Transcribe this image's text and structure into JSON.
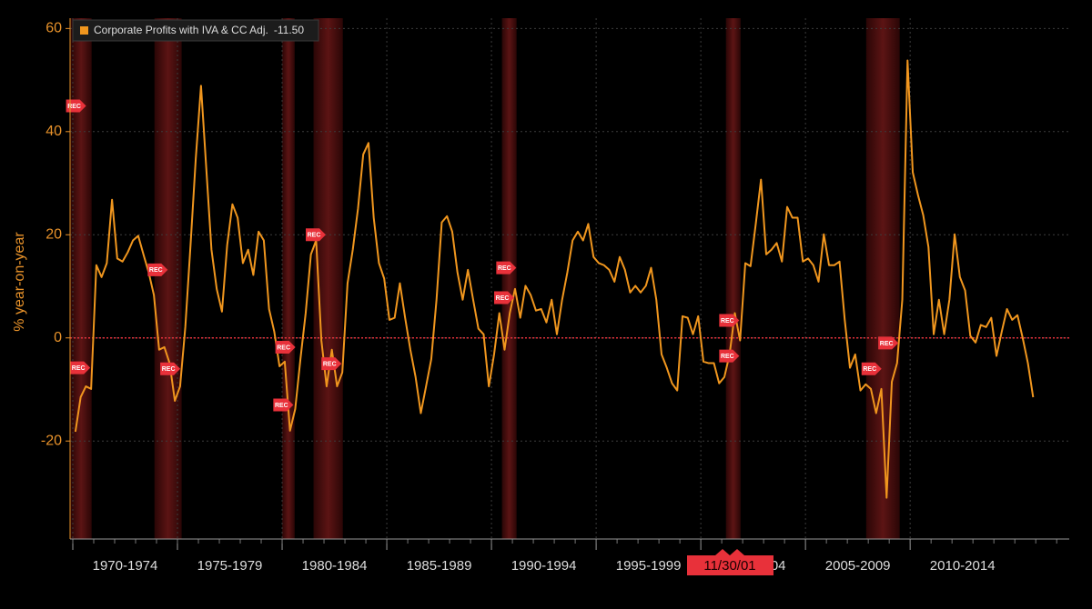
{
  "chart_data": {
    "type": "line",
    "y_label": "% year-on-year",
    "xlim": [
      1969.87,
      2017.6
    ],
    "ylim": [
      -39,
      62
    ],
    "xticks": [
      {
        "value": 1970,
        "label": "1970-1974"
      },
      {
        "value": 1975,
        "label": "1975-1979"
      },
      {
        "value": 1980,
        "label": "1980-1984"
      },
      {
        "value": 1985,
        "label": "1985-1989"
      },
      {
        "value": 1990,
        "label": "1990-1994"
      },
      {
        "value": 1995,
        "label": "1995-1999"
      },
      {
        "value": 2000,
        "label": "2000-2004"
      },
      {
        "value": 2005,
        "label": "2005-2009"
      },
      {
        "value": 2010,
        "label": "2010-2014"
      }
    ],
    "yticks": [
      -20,
      0,
      20,
      40,
      60
    ],
    "grid": true,
    "zero_line_color": "#e0303a",
    "x": [
      1970.125,
      1970.375,
      1970.625,
      1970.875,
      1971.125,
      1971.375,
      1971.625,
      1971.875,
      1972.125,
      1972.375,
      1972.625,
      1972.875,
      1973.125,
      1973.375,
      1973.625,
      1973.875,
      1974.125,
      1974.375,
      1974.625,
      1974.875,
      1975.125,
      1975.375,
      1975.625,
      1975.875,
      1976.125,
      1976.375,
      1976.625,
      1976.875,
      1977.125,
      1977.375,
      1977.625,
      1977.875,
      1978.125,
      1978.375,
      1978.625,
      1978.875,
      1979.125,
      1979.375,
      1979.625,
      1979.875,
      1980.125,
      1980.375,
      1980.625,
      1980.875,
      1981.125,
      1981.375,
      1981.625,
      1981.875,
      1982.125,
      1982.375,
      1982.625,
      1982.875,
      1983.125,
      1983.375,
      1983.625,
      1983.875,
      1984.125,
      1984.375,
      1984.625,
      1984.875,
      1985.125,
      1985.375,
      1985.625,
      1985.875,
      1986.125,
      1986.375,
      1986.625,
      1986.875,
      1987.125,
      1987.375,
      1987.625,
      1987.875,
      1988.125,
      1988.375,
      1988.625,
      1988.875,
      1989.125,
      1989.375,
      1989.625,
      1989.875,
      1990.125,
      1990.375,
      1990.625,
      1990.875,
      1991.125,
      1991.375,
      1991.625,
      1991.875,
      1992.125,
      1992.375,
      1992.625,
      1992.875,
      1993.125,
      1993.375,
      1993.625,
      1993.875,
      1994.125,
      1994.375,
      1994.625,
      1994.875,
      1995.125,
      1995.375,
      1995.625,
      1995.875,
      1996.125,
      1996.375,
      1996.625,
      1996.875,
      1997.125,
      1997.375,
      1997.625,
      1997.875,
      1998.125,
      1998.375,
      1998.625,
      1998.875,
      1999.125,
      1999.375,
      1999.625,
      1999.875,
      2000.125,
      2000.375,
      2000.625,
      2000.875,
      2001.125,
      2001.375,
      2001.625,
      2001.875,
      2002.125,
      2002.375,
      2002.625,
      2002.875,
      2003.125,
      2003.375,
      2003.625,
      2003.875,
      2004.125,
      2004.375,
      2004.625,
      2004.875,
      2005.125,
      2005.375,
      2005.625,
      2005.875,
      2006.125,
      2006.375,
      2006.625,
      2006.875,
      2007.125,
      2007.375,
      2007.625,
      2007.875,
      2008.125,
      2008.375,
      2008.625,
      2008.875,
      2009.125,
      2009.375,
      2009.625,
      2009.875,
      2010.125,
      2010.375,
      2010.625,
      2010.875,
      2011.125,
      2011.375,
      2011.625,
      2011.875,
      2012.125,
      2012.375,
      2012.625,
      2012.875,
      2013.125,
      2013.375,
      2013.625,
      2013.875,
      2014.125,
      2014.375,
      2014.625,
      2014.875,
      2015.125,
      2015.375,
      2015.625,
      2015.875
    ],
    "series": [
      {
        "name": "Corporate Profits with IVA & CC Adj.",
        "color": "#f0961e",
        "values": [
          -18.2,
          -11.5,
          -9.4,
          -9.9,
          14.1,
          11.8,
          14.5,
          26.8,
          15.4,
          14.8,
          16.6,
          18.9,
          19.8,
          16.2,
          12.7,
          8.3,
          -2.3,
          -1.8,
          -4.9,
          -12.2,
          -9.4,
          2.1,
          18,
          34.8,
          48.9,
          33,
          17.1,
          9.5,
          5.1,
          18,
          25.9,
          23.3,
          14.5,
          17.1,
          12.2,
          20.6,
          18.9,
          5.6,
          1.2,
          -5.5,
          -4.6,
          -18,
          -13.8,
          -4.1,
          4.8,
          16.2,
          18.9,
          -0.5,
          -9.4,
          -2.3,
          -9.4,
          -6.7,
          10.6,
          17.1,
          25.1,
          35.6,
          37.8,
          23.3,
          14.5,
          11.5,
          3.5,
          3.9,
          10.6,
          3.9,
          -2.3,
          -7.6,
          -14.6,
          -9.4,
          -4.1,
          7.4,
          22.4,
          23.6,
          20.6,
          12.7,
          7.4,
          13.2,
          7.4,
          1.8,
          0.7,
          -9.4,
          -3.2,
          4.8,
          -2.3,
          4.8,
          9.5,
          3.9,
          10.1,
          8.3,
          5.3,
          5.6,
          3,
          7.4,
          0.7,
          7.4,
          12.7,
          18.9,
          20.6,
          18.9,
          22.1,
          15.7,
          14.5,
          14.1,
          13.2,
          10.9,
          15.7,
          13.2,
          8.8,
          10.1,
          8.8,
          10.1,
          13.6,
          7.4,
          -3.2,
          -5.8,
          -8.8,
          -10.2,
          4.2,
          3.9,
          0.7,
          4.2,
          -4.6,
          -4.9,
          -4.9,
          -8.8,
          -7.6,
          -3.2,
          4.8,
          -0.5,
          14.5,
          13.9,
          22.1,
          30.7,
          16.2,
          17.1,
          18.4,
          14.8,
          25.4,
          23.3,
          23.3,
          14.8,
          15.4,
          14.1,
          10.9,
          20.1,
          14.1,
          14.1,
          14.8,
          3.5,
          -5.8,
          -3.2,
          -10.2,
          -9,
          -9.9,
          -14.6,
          -9.9,
          -31,
          -8.5,
          -4.9,
          7.4,
          53.8,
          32.1,
          27.7,
          23.8,
          17.6,
          0.7,
          7.4,
          0.7,
          7.4,
          20.1,
          11.8,
          9.2,
          0.4,
          -0.9,
          2.5,
          2.1,
          3.9,
          -3.5,
          1.2,
          5.6,
          3.5,
          4.4,
          0,
          -4.9,
          -11.5
        ]
      }
    ],
    "legend_value": {
      "value": -11.5,
      "label": "-11.50"
    },
    "recessions": [
      {
        "start": 1969.9,
        "end": 1970.9
      },
      {
        "start": 1973.9,
        "end": 1975.2
      },
      {
        "start": 1980.0,
        "end": 1980.6
      },
      {
        "start": 1981.5,
        "end": 1982.9
      },
      {
        "start": 1990.5,
        "end": 1991.2
      },
      {
        "start": 2001.2,
        "end": 2001.9
      },
      {
        "start": 2007.9,
        "end": 2009.5
      }
    ],
    "rec_markers": [
      {
        "x": 1970.2,
        "y": 45,
        "label": "REC"
      },
      {
        "x": 1970.4,
        "y": -5.8,
        "label": "REC"
      },
      {
        "x": 1974.1,
        "y": 13.2,
        "label": "REC"
      },
      {
        "x": 1974.7,
        "y": -6,
        "label": "REC"
      },
      {
        "x": 1980.2,
        "y": -1.8,
        "label": "REC"
      },
      {
        "x": 1980.1,
        "y": -13,
        "label": "REC"
      },
      {
        "x": 1981.65,
        "y": 20,
        "label": "REC"
      },
      {
        "x": 1982.4,
        "y": -5,
        "label": "REC"
      },
      {
        "x": 1990.75,
        "y": 13.6,
        "label": "REC"
      },
      {
        "x": 1990.65,
        "y": 7.8,
        "label": "REC"
      },
      {
        "x": 2001.4,
        "y": 3.4,
        "label": "REC"
      },
      {
        "x": 2001.4,
        "y": -3.5,
        "label": "REC"
      },
      {
        "x": 2008.2,
        "y": -6,
        "label": "REC"
      },
      {
        "x": 2009.0,
        "y": -1,
        "label": "REC"
      }
    ],
    "cursor_label": "11/30/01"
  }
}
